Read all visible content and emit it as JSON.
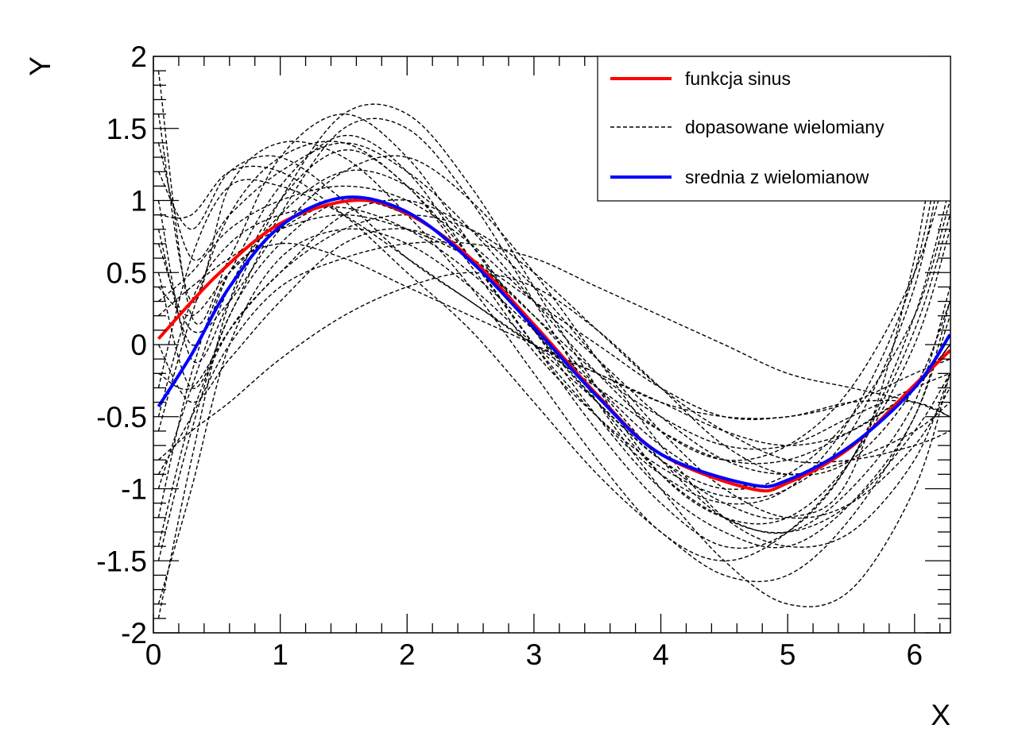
{
  "chart_data": {
    "type": "line",
    "title": "",
    "xlabel": "X",
    "ylabel": "Y",
    "xlim": [
      0,
      6.283
    ],
    "ylim": [
      -2,
      2
    ],
    "x_ticks": [
      "0",
      "1",
      "2",
      "3",
      "4",
      "5",
      "6"
    ],
    "y_ticks": [
      "-2",
      "-1.5",
      "-1",
      "-0.5",
      "0",
      "0.5",
      "1",
      "1.5",
      "2"
    ],
    "grid": false,
    "legend_position": "top-right",
    "legend": [
      {
        "label": "funkcja sinus",
        "color": "#ff0000",
        "style": "solid"
      },
      {
        "label": "dopasowane wielomiany",
        "color": "#000000",
        "style": "dashed"
      },
      {
        "label": "srednia z wielomianow",
        "color": "#0000ff",
        "style": "solid"
      }
    ],
    "series": [
      {
        "name": "funkcja sinus",
        "color": "#ff0000",
        "style": "solid",
        "x": [
          0.04,
          0.5,
          1.0,
          1.57,
          2.0,
          2.5,
          3.0,
          3.5,
          4.0,
          4.71,
          5.0,
          5.5,
          6.0,
          6.28
        ],
        "y": [
          0.04,
          0.48,
          0.84,
          1.0,
          0.91,
          0.6,
          0.14,
          -0.35,
          -0.76,
          -1.0,
          -0.96,
          -0.71,
          -0.28,
          -0.04
        ]
      },
      {
        "name": "srednia z wielomianow",
        "color": "#0000ff",
        "style": "solid",
        "x": [
          0.04,
          0.3,
          0.6,
          1.0,
          1.5,
          2.0,
          2.5,
          3.0,
          3.5,
          4.0,
          4.7,
          5.0,
          5.5,
          6.0,
          6.28
        ],
        "y": [
          -0.43,
          -0.07,
          0.4,
          0.82,
          1.02,
          0.92,
          0.58,
          0.12,
          -0.36,
          -0.76,
          -0.97,
          -0.94,
          -0.7,
          -0.3,
          0.07
        ]
      }
    ],
    "polynomials": {
      "color": "#000000",
      "style": "dashed",
      "x": [
        0.04,
        0.3,
        0.6,
        1.0,
        1.5,
        2.0,
        2.5,
        3.0,
        3.5,
        4.0,
        4.5,
        5.0,
        5.5,
        6.0,
        6.28
      ],
      "curves": [
        [
          1.9,
          0.2,
          0.6,
          1.3,
          1.6,
          1.3,
          0.7,
          0.1,
          -0.4,
          -0.8,
          -1.1,
          -1.2,
          -0.9,
          0.6,
          2.2
        ],
        [
          -1.9,
          -0.8,
          0.3,
          1.0,
          1.35,
          1.1,
          0.55,
          -0.05,
          -0.5,
          -0.85,
          -1.05,
          -1.0,
          -0.6,
          0.4,
          1.6
        ],
        [
          0.8,
          0.0,
          0.5,
          1.1,
          1.45,
          1.2,
          0.6,
          0.0,
          -0.5,
          -0.9,
          -1.1,
          -1.0,
          -0.5,
          0.5,
          1.8
        ],
        [
          -0.5,
          0.3,
          0.7,
          0.9,
          0.95,
          0.8,
          0.5,
          0.1,
          -0.3,
          -0.7,
          -0.95,
          -0.95,
          -0.7,
          -0.3,
          0.0
        ],
        [
          -1.5,
          -0.6,
          0.2,
          0.7,
          1.0,
          0.9,
          0.6,
          0.2,
          -0.2,
          -0.5,
          -0.7,
          -0.7,
          -0.5,
          -0.3,
          -0.2
        ],
        [
          1.6,
          0.3,
          1.1,
          1.4,
          1.3,
          0.9,
          0.4,
          -0.2,
          -0.8,
          -1.3,
          -1.5,
          -1.3,
          -0.8,
          0.1,
          0.9
        ],
        [
          -1.0,
          -0.3,
          0.4,
          0.9,
          1.2,
          1.1,
          0.7,
          0.1,
          -0.5,
          -1.0,
          -1.3,
          -1.4,
          -1.1,
          -0.5,
          0.3
        ],
        [
          0.3,
          0.5,
          0.8,
          1.0,
          1.1,
          1.0,
          0.7,
          0.3,
          -0.1,
          -0.5,
          -0.8,
          -0.9,
          -0.8,
          -0.6,
          -0.4
        ],
        [
          -0.2,
          -0.3,
          0.1,
          0.5,
          0.8,
          0.9,
          0.8,
          0.5,
          0.1,
          -0.3,
          -0.6,
          -0.8,
          -0.8,
          -0.7,
          -0.6
        ],
        [
          1.2,
          0.8,
          1.2,
          1.3,
          1.0,
          0.6,
          0.3,
          0.0,
          -0.2,
          -0.4,
          -0.5,
          -0.5,
          -0.4,
          -0.4,
          -0.5
        ],
        [
          -1.8,
          -1.0,
          0.0,
          0.6,
          0.8,
          0.7,
          0.4,
          0.0,
          -0.4,
          -0.8,
          -1.0,
          -0.9,
          -0.5,
          0.2,
          1.0
        ],
        [
          0.5,
          -0.3,
          0.2,
          0.9,
          1.5,
          1.5,
          1.0,
          0.3,
          -0.4,
          -1.0,
          -1.5,
          -1.8,
          -1.7,
          -1.0,
          -0.2
        ],
        [
          -0.8,
          -0.6,
          -0.4,
          -0.1,
          0.2,
          0.4,
          0.5,
          0.4,
          0.1,
          -0.3,
          -0.7,
          -0.9,
          -0.8,
          -0.3,
          0.3
        ],
        [
          0.9,
          0.9,
          1.2,
          1.2,
          0.9,
          0.5,
          0.1,
          -0.4,
          -0.9,
          -1.3,
          -1.6,
          -1.6,
          -1.2,
          -0.5,
          0.2
        ],
        [
          -1.2,
          -0.2,
          0.5,
          0.7,
          0.6,
          0.4,
          0.2,
          0.0,
          -0.2,
          -0.4,
          -0.6,
          -0.7,
          -0.6,
          -0.3,
          0.0
        ],
        [
          0.0,
          -0.4,
          -0.1,
          0.3,
          0.7,
          0.8,
          0.6,
          0.2,
          -0.3,
          -0.8,
          -1.2,
          -1.3,
          -1.1,
          -0.6,
          -0.2
        ],
        [
          1.4,
          0.6,
          0.9,
          1.2,
          1.4,
          1.2,
          0.8,
          0.3,
          -0.2,
          -0.6,
          -0.8,
          -0.7,
          -0.3,
          0.5,
          1.3
        ],
        [
          -0.6,
          0.2,
          0.9,
          1.3,
          1.4,
          1.1,
          0.6,
          0.0,
          -0.6,
          -1.1,
          -1.4,
          -1.3,
          -0.8,
          0.2,
          1.1
        ],
        [
          0.2,
          0.4,
          0.6,
          0.8,
          0.9,
          0.8,
          0.6,
          0.3,
          0.0,
          -0.3,
          -0.5,
          -0.5,
          -0.4,
          -0.2,
          -0.1
        ],
        [
          -1.4,
          -0.5,
          0.1,
          0.5,
          0.9,
          1.0,
          0.8,
          0.4,
          -0.1,
          -0.6,
          -1.0,
          -1.2,
          -1.1,
          -0.7,
          -0.3
        ],
        [
          0.7,
          0.1,
          0.3,
          0.8,
          1.2,
          1.3,
          1.0,
          0.5,
          -0.1,
          -0.7,
          -1.2,
          -1.4,
          -1.3,
          -0.8,
          -0.2
        ],
        [
          -0.3,
          0.6,
          1.1,
          1.1,
          0.9,
          0.6,
          0.3,
          0.0,
          -0.3,
          -0.6,
          -0.8,
          -0.8,
          -0.6,
          -0.3,
          0.0
        ],
        [
          1.0,
          -0.1,
          0.3,
          1.0,
          1.6,
          1.6,
          1.1,
          0.4,
          -0.3,
          -0.9,
          -1.2,
          -1.2,
          -0.8,
          0.0,
          0.8
        ],
        [
          -0.9,
          -0.5,
          0.0,
          0.4,
          0.6,
          0.7,
          0.7,
          0.6,
          0.4,
          0.2,
          0.0,
          -0.2,
          -0.3,
          -0.4,
          -0.5
        ],
        [
          0.4,
          0.2,
          0.5,
          0.8,
          1.0,
          0.9,
          0.6,
          0.1,
          -0.4,
          -0.9,
          -1.2,
          -1.3,
          -1.0,
          -0.4,
          0.4
        ]
      ]
    }
  }
}
